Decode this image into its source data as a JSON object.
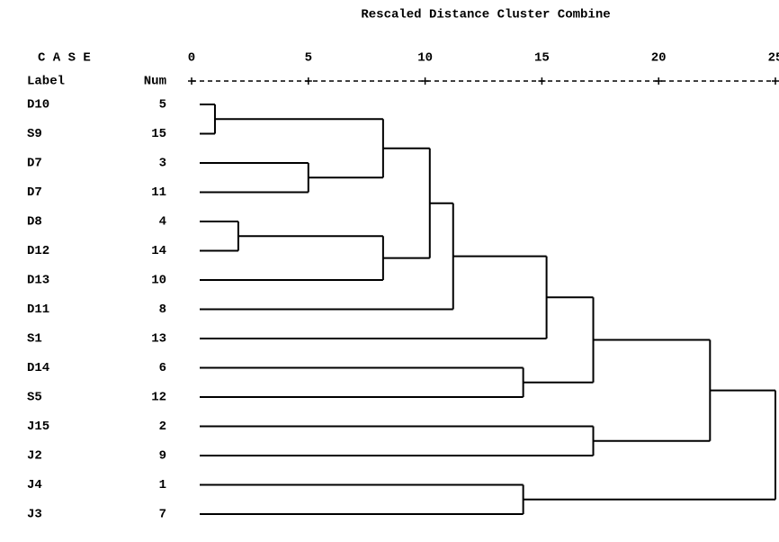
{
  "chart_data": {
    "type": "dendrogram",
    "title": "Rescaled Distance Cluster Combine",
    "case_header": "C A S E",
    "label_header": "Label",
    "num_header": "Num",
    "xlim": [
      0,
      25
    ],
    "xticks": [
      0,
      5,
      10,
      15,
      20,
      25
    ],
    "color": "#000000",
    "tree": {
      "distance": 25,
      "children": [
        {
          "distance": 22.2,
          "children": [
            {
              "distance": 17.2,
              "children": [
                {
                  "distance": 15.2,
                  "children": [
                    {
                      "distance": 11.2,
                      "children": [
                        {
                          "distance": 10.2,
                          "children": [
                            {
                              "distance": 8.2,
                              "children": [
                                {
                                  "distance": 1,
                                  "children": [
                                    {
                                      "label": "D10",
                                      "num": 5
                                    },
                                    {
                                      "label": "S9",
                                      "num": 15
                                    }
                                  ]
                                },
                                {
                                  "distance": 5,
                                  "children": [
                                    {
                                      "label": "D7",
                                      "num": 3
                                    },
                                    {
                                      "label": "D7",
                                      "num": 11
                                    }
                                  ]
                                }
                              ]
                            },
                            {
                              "distance": 8.2,
                              "children": [
                                {
                                  "distance": 2,
                                  "children": [
                                    {
                                      "label": "D8",
                                      "num": 4
                                    },
                                    {
                                      "label": "D12",
                                      "num": 14
                                    }
                                  ]
                                },
                                {
                                  "label": "D13",
                                  "num": 10
                                }
                              ]
                            }
                          ]
                        },
                        {
                          "label": "D11",
                          "num": 8
                        }
                      ]
                    },
                    {
                      "label": "S1",
                      "num": 13
                    }
                  ]
                },
                {
                  "distance": 14.2,
                  "children": [
                    {
                      "label": "D14",
                      "num": 6
                    },
                    {
                      "label": "S5",
                      "num": 12
                    }
                  ]
                }
              ]
            },
            {
              "distance": 17.2,
              "children": [
                {
                  "label": "J15",
                  "num": 2
                },
                {
                  "label": "J2",
                  "num": 9
                }
              ]
            }
          ]
        },
        {
          "distance": 14.2,
          "children": [
            {
              "label": "J4",
              "num": 1
            },
            {
              "label": "J3",
              "num": 7
            }
          ]
        }
      ]
    }
  }
}
